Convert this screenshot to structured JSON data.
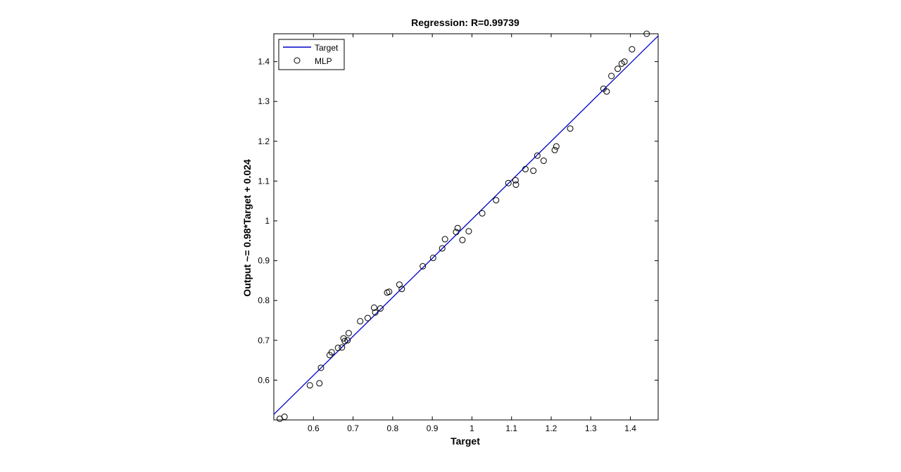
{
  "chart_data": {
    "type": "scatter",
    "title": "Regression: R=0.99739",
    "xlabel": "Target",
    "ylabel": "Output ~= 0.98*Target + 0.024",
    "xlim": [
      0.5,
      1.47
    ],
    "ylim": [
      0.5,
      1.47
    ],
    "xticks": [
      "0.6",
      "0.7",
      "0.8",
      "0.9",
      "1",
      "1.1",
      "1.2",
      "1.3",
      "1.4"
    ],
    "yticks": [
      "0.6",
      "0.7",
      "0.8",
      "0.9",
      "1",
      "1.1",
      "1.2",
      "1.3",
      "1.4"
    ],
    "legend": {
      "position": "top-left",
      "entries": [
        "Target",
        "MLP"
      ]
    },
    "fit_line": {
      "name": "Target",
      "slope": 0.98,
      "intercept": 0.024,
      "color": "#0000cc"
    },
    "series": [
      {
        "name": "MLP",
        "marker": "open-circle",
        "color": "#000000",
        "points": [
          [
            0.515,
            0.503
          ],
          [
            0.527,
            0.508
          ],
          [
            0.591,
            0.587
          ],
          [
            0.615,
            0.592
          ],
          [
            0.619,
            0.631
          ],
          [
            0.641,
            0.663
          ],
          [
            0.646,
            0.67
          ],
          [
            0.662,
            0.681
          ],
          [
            0.672,
            0.682
          ],
          [
            0.676,
            0.705
          ],
          [
            0.679,
            0.698
          ],
          [
            0.686,
            0.7
          ],
          [
            0.689,
            0.718
          ],
          [
            0.718,
            0.748
          ],
          [
            0.737,
            0.756
          ],
          [
            0.753,
            0.782
          ],
          [
            0.756,
            0.77
          ],
          [
            0.769,
            0.78
          ],
          [
            0.786,
            0.82
          ],
          [
            0.791,
            0.822
          ],
          [
            0.817,
            0.84
          ],
          [
            0.823,
            0.829
          ],
          [
            0.876,
            0.886
          ],
          [
            0.902,
            0.907
          ],
          [
            0.925,
            0.931
          ],
          [
            0.932,
            0.954
          ],
          [
            0.96,
            0.972
          ],
          [
            0.964,
            0.982
          ],
          [
            0.976,
            0.952
          ],
          [
            0.992,
            0.974
          ],
          [
            1.026,
            1.019
          ],
          [
            1.061,
            1.052
          ],
          [
            1.092,
            1.095
          ],
          [
            1.11,
            1.102
          ],
          [
            1.111,
            1.091
          ],
          [
            1.135,
            1.13
          ],
          [
            1.155,
            1.126
          ],
          [
            1.165,
            1.164
          ],
          [
            1.181,
            1.151
          ],
          [
            1.209,
            1.178
          ],
          [
            1.213,
            1.187
          ],
          [
            1.248,
            1.232
          ],
          [
            1.332,
            1.332
          ],
          [
            1.34,
            1.325
          ],
          [
            1.352,
            1.364
          ],
          [
            1.368,
            1.382
          ],
          [
            1.378,
            1.395
          ],
          [
            1.385,
            1.4
          ],
          [
            1.404,
            1.431
          ],
          [
            1.441,
            1.47
          ]
        ]
      }
    ]
  }
}
